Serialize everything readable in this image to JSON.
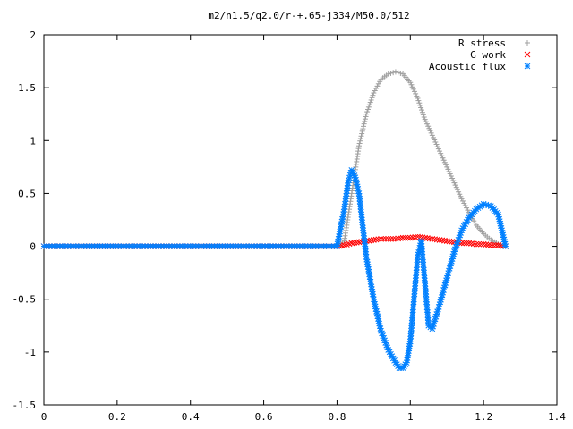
{
  "chart_data": {
    "type": "scatter",
    "title": "m2/n1.5/q2.0/r-+.65-j334/M50.0/512",
    "xlabel": "",
    "ylabel": "",
    "xlim": [
      0,
      1.4
    ],
    "ylim": [
      -1.5,
      2
    ],
    "xticks": [
      "0",
      "0.2",
      "0.4",
      "0.6",
      "0.8",
      "1",
      "1.2",
      "1.4"
    ],
    "yticks": [
      "-1.5",
      "-1",
      "-0.5",
      "0",
      "0.5",
      "1",
      "1.5",
      "2"
    ],
    "grid": false,
    "legend_position": "top-right",
    "series": [
      {
        "name": "R stress",
        "marker": "plus",
        "color": "#a0a0a0",
        "x": [
          0.0,
          0.8,
          0.82,
          0.84,
          0.86,
          0.88,
          0.9,
          0.92,
          0.94,
          0.96,
          0.98,
          1.0,
          1.02,
          1.04,
          1.06,
          1.08,
          1.1,
          1.12,
          1.14,
          1.16,
          1.18,
          1.2,
          1.22,
          1.24,
          1.26
        ],
        "y": [
          0.0,
          0.0,
          0.05,
          0.5,
          0.95,
          1.25,
          1.45,
          1.58,
          1.63,
          1.65,
          1.63,
          1.55,
          1.4,
          1.2,
          1.05,
          0.9,
          0.75,
          0.6,
          0.45,
          0.32,
          0.2,
          0.12,
          0.06,
          0.02,
          0.0
        ]
      },
      {
        "name": "G work",
        "marker": "cross",
        "color": "#ff0000",
        "x": [
          0.0,
          0.8,
          0.82,
          0.84,
          0.86,
          0.88,
          0.9,
          0.92,
          0.94,
          0.96,
          0.98,
          1.0,
          1.02,
          1.04,
          1.06,
          1.08,
          1.1,
          1.12,
          1.14,
          1.16,
          1.18,
          1.2,
          1.22,
          1.24,
          1.26
        ],
        "y": [
          0.0,
          0.0,
          0.01,
          0.03,
          0.04,
          0.05,
          0.06,
          0.07,
          0.07,
          0.07,
          0.08,
          0.08,
          0.09,
          0.08,
          0.07,
          0.06,
          0.05,
          0.04,
          0.03,
          0.03,
          0.02,
          0.02,
          0.01,
          0.01,
          0.0
        ]
      },
      {
        "name": "Acoustic flux",
        "marker": "star",
        "color": "#0080ff",
        "x": [
          0.0,
          0.8,
          0.82,
          0.83,
          0.84,
          0.85,
          0.86,
          0.87,
          0.88,
          0.9,
          0.92,
          0.94,
          0.96,
          0.97,
          0.98,
          0.99,
          1.0,
          1.01,
          1.02,
          1.03,
          1.04,
          1.05,
          1.06,
          1.08,
          1.1,
          1.12,
          1.14,
          1.16,
          1.18,
          1.2,
          1.22,
          1.24,
          1.25,
          1.26
        ],
        "y": [
          0.0,
          0.0,
          0.35,
          0.6,
          0.72,
          0.65,
          0.5,
          0.2,
          -0.1,
          -0.5,
          -0.8,
          -0.98,
          -1.1,
          -1.15,
          -1.15,
          -1.1,
          -0.9,
          -0.5,
          -0.1,
          0.05,
          -0.35,
          -0.75,
          -0.78,
          -0.55,
          -0.3,
          -0.05,
          0.15,
          0.27,
          0.35,
          0.4,
          0.38,
          0.3,
          0.15,
          0.0
        ]
      }
    ]
  }
}
